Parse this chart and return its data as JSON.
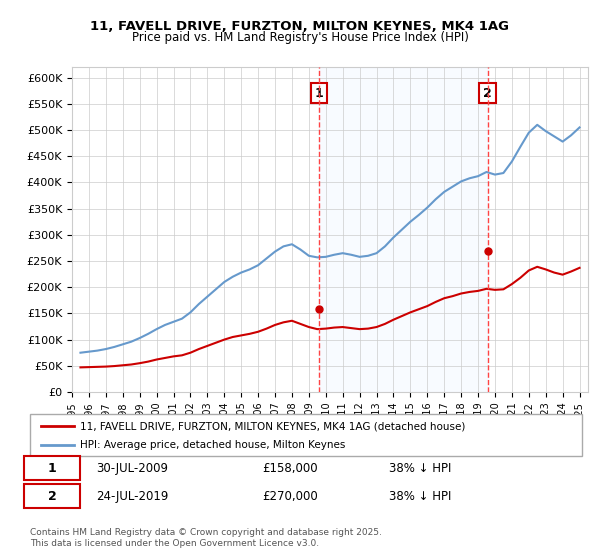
{
  "title_line1": "11, FAVELL DRIVE, FURZTON, MILTON KEYNES, MK4 1AG",
  "title_line2": "Price paid vs. HM Land Registry's House Price Index (HPI)",
  "ylabel_ticks": [
    "£0",
    "£50K",
    "£100K",
    "£150K",
    "£200K",
    "£250K",
    "£300K",
    "£350K",
    "£400K",
    "£450K",
    "£500K",
    "£550K",
    "£600K"
  ],
  "ytick_values": [
    0,
    50000,
    100000,
    150000,
    200000,
    250000,
    300000,
    350000,
    400000,
    450000,
    500000,
    550000,
    600000
  ],
  "ylim": [
    0,
    620000
  ],
  "xlim_start": 1995.0,
  "xlim_end": 2025.5,
  "xticks": [
    1995,
    1996,
    1997,
    1998,
    1999,
    2000,
    2001,
    2002,
    2003,
    2004,
    2005,
    2006,
    2007,
    2008,
    2009,
    2010,
    2011,
    2012,
    2013,
    2014,
    2015,
    2016,
    2017,
    2018,
    2019,
    2020,
    2021,
    2022,
    2023,
    2024,
    2025
  ],
  "color_red": "#cc0000",
  "color_blue": "#6699cc",
  "color_shade": "#ddeeff",
  "color_vline": "#ff4444",
  "marker1_x": 2009.58,
  "marker1_y": 158000,
  "marker2_x": 2019.56,
  "marker2_y": 270000,
  "legend_label_red": "11, FAVELL DRIVE, FURZTON, MILTON KEYNES, MK4 1AG (detached house)",
  "legend_label_blue": "HPI: Average price, detached house, Milton Keynes",
  "note1_label": "1",
  "note1_date": "30-JUL-2009",
  "note1_price": "£158,000",
  "note1_pct": "38% ↓ HPI",
  "note2_label": "2",
  "note2_date": "24-JUL-2019",
  "note2_price": "£270,000",
  "note2_pct": "38% ↓ HPI",
  "footer": "Contains HM Land Registry data © Crown copyright and database right 2025.\nThis data is licensed under the Open Government Licence v3.0.",
  "hpi_years": [
    1995.5,
    1996.0,
    1996.5,
    1997.0,
    1997.5,
    1998.0,
    1998.5,
    1999.0,
    1999.5,
    2000.0,
    2000.5,
    2001.0,
    2001.5,
    2002.0,
    2002.5,
    2003.0,
    2003.5,
    2004.0,
    2004.5,
    2005.0,
    2005.5,
    2006.0,
    2006.5,
    2007.0,
    2007.5,
    2008.0,
    2008.5,
    2009.0,
    2009.5,
    2010.0,
    2010.5,
    2011.0,
    2011.5,
    2012.0,
    2012.5,
    2013.0,
    2013.5,
    2014.0,
    2014.5,
    2015.0,
    2015.5,
    2016.0,
    2016.5,
    2017.0,
    2017.5,
    2018.0,
    2018.5,
    2019.0,
    2019.5,
    2020.0,
    2020.5,
    2021.0,
    2021.5,
    2022.0,
    2022.5,
    2023.0,
    2023.5,
    2024.0,
    2024.5,
    2025.0
  ],
  "hpi_values": [
    75000,
    77000,
    79000,
    82000,
    86000,
    91000,
    96000,
    103000,
    111000,
    120000,
    128000,
    134000,
    140000,
    152000,
    168000,
    182000,
    196000,
    210000,
    220000,
    228000,
    234000,
    242000,
    255000,
    268000,
    278000,
    282000,
    272000,
    260000,
    257000,
    258000,
    262000,
    265000,
    262000,
    258000,
    260000,
    265000,
    278000,
    295000,
    310000,
    325000,
    338000,
    352000,
    368000,
    382000,
    392000,
    402000,
    408000,
    412000,
    420000,
    415000,
    418000,
    440000,
    468000,
    495000,
    510000,
    498000,
    488000,
    478000,
    490000,
    505000
  ],
  "red_years": [
    1995.5,
    1996.0,
    1996.5,
    1997.0,
    1997.5,
    1998.0,
    1998.5,
    1999.0,
    1999.5,
    2000.0,
    2000.5,
    2001.0,
    2001.5,
    2002.0,
    2002.5,
    2003.0,
    2003.5,
    2004.0,
    2004.5,
    2005.0,
    2005.5,
    2006.0,
    2006.5,
    2007.0,
    2007.5,
    2008.0,
    2008.5,
    2009.0,
    2009.5,
    2010.0,
    2010.5,
    2011.0,
    2011.5,
    2012.0,
    2012.5,
    2013.0,
    2013.5,
    2014.0,
    2014.5,
    2015.0,
    2015.5,
    2016.0,
    2016.5,
    2017.0,
    2017.5,
    2018.0,
    2018.5,
    2019.0,
    2019.5,
    2020.0,
    2020.5,
    2021.0,
    2021.5,
    2022.0,
    2022.5,
    2023.0,
    2023.5,
    2024.0,
    2024.5,
    2025.0
  ],
  "red_values": [
    47000,
    47500,
    48000,
    48500,
    49500,
    51000,
    52500,
    55000,
    58000,
    62000,
    65000,
    68000,
    70000,
    75000,
    82000,
    88000,
    94000,
    100000,
    105000,
    108000,
    111000,
    115000,
    121000,
    128000,
    133000,
    136000,
    130000,
    124000,
    120000,
    121000,
    123000,
    124000,
    122000,
    120000,
    121000,
    124000,
    130000,
    138000,
    145000,
    152000,
    158000,
    164000,
    172000,
    179000,
    183000,
    188000,
    191000,
    193000,
    197000,
    195000,
    196000,
    206000,
    218000,
    232000,
    239000,
    234000,
    228000,
    224000,
    230000,
    237000
  ],
  "shade_start": 2009.58,
  "shade_end": 2019.56
}
